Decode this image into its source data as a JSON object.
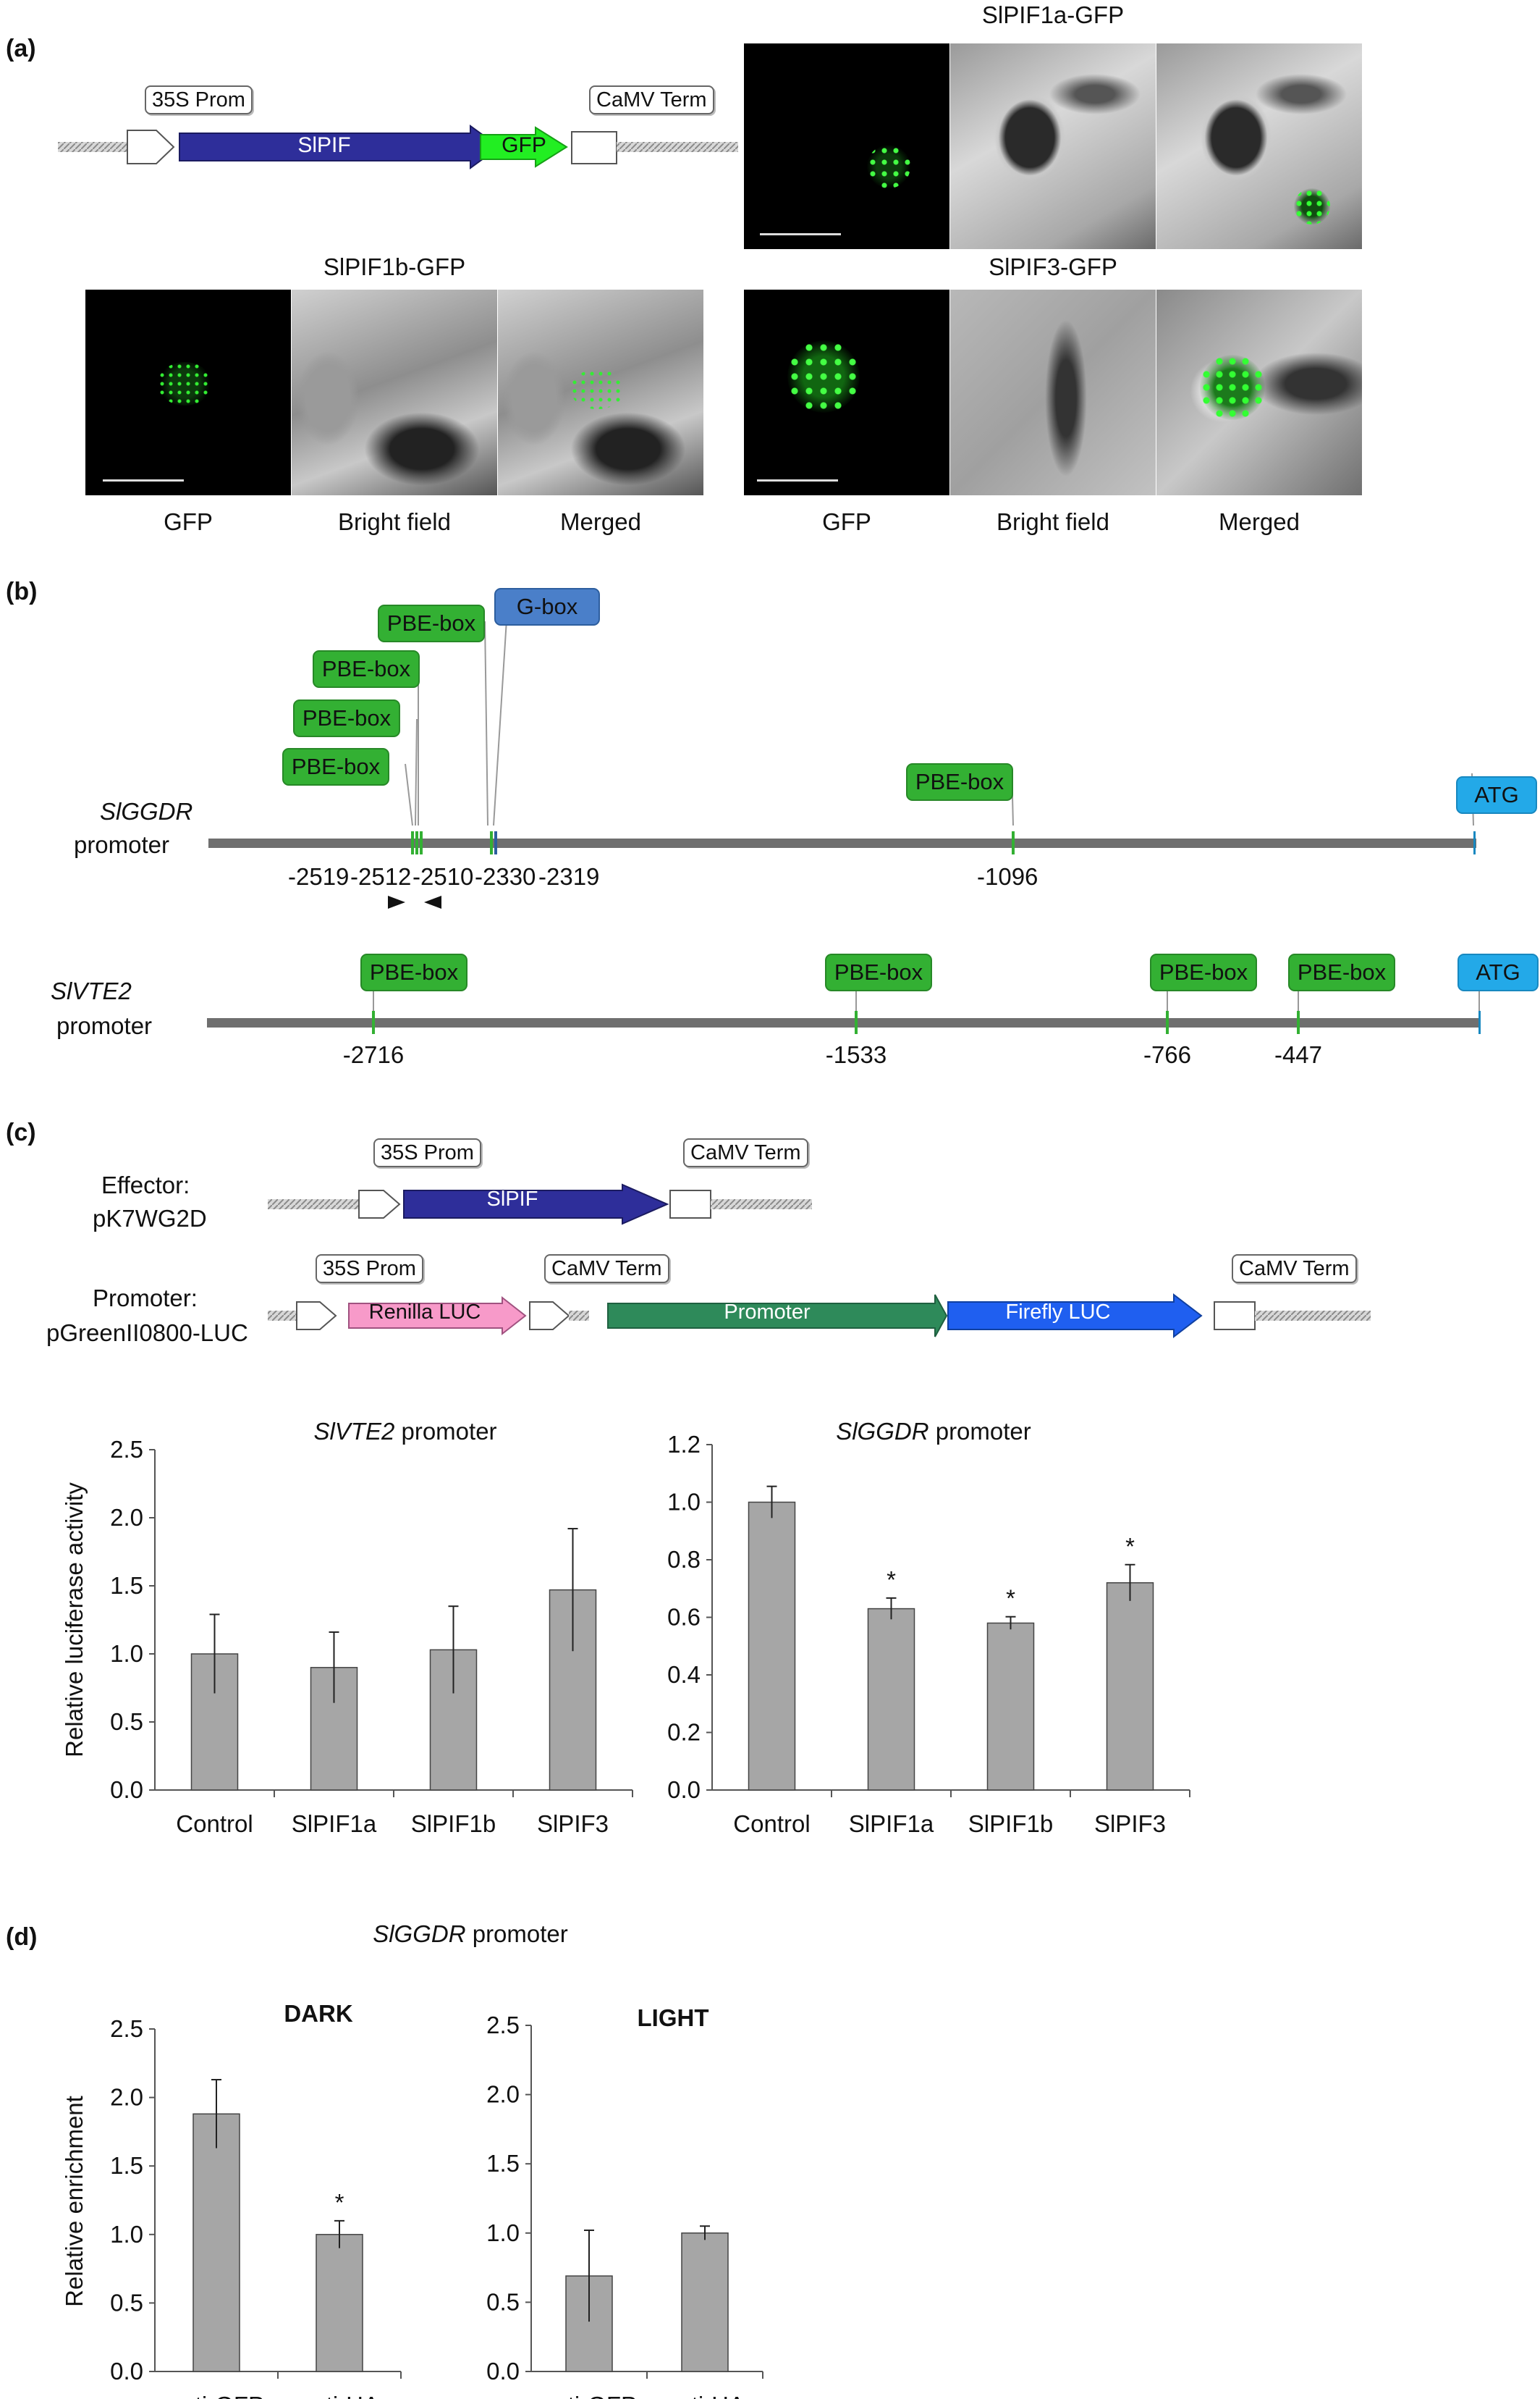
{
  "panel_a": {
    "label": "(a)",
    "construct": {
      "prom": "35S Prom",
      "gene": "SlPIF",
      "gfp": "GFP",
      "term": "CaMV Term"
    },
    "sets": [
      {
        "title": "SlPIF1a-GFP"
      },
      {
        "title": "SlPIF1b-GFP"
      },
      {
        "title": "SlPIF3-GFP"
      }
    ],
    "image_labels": {
      "gfp": "GFP",
      "bright": "Bright field",
      "merged": "Merged"
    }
  },
  "panel_b": {
    "label": "(b)",
    "ggdr": {
      "name": "SlGGDR",
      "suffix": "promoter",
      "boxes": [
        "PBE-box",
        "PBE-box",
        "PBE-box",
        "PBE-box",
        "G-box",
        "PBE-box",
        "ATG"
      ],
      "positions": [
        "-2519",
        "-2512",
        "-2510",
        "-2330",
        "-2319",
        "-1096"
      ]
    },
    "vte2": {
      "name": "SlVTE2",
      "suffix": "promoter",
      "boxes": [
        "PBE-box",
        "PBE-box",
        "PBE-box",
        "PBE-box",
        "ATG"
      ],
      "positions": [
        "-2716",
        "-1533",
        "-766",
        "-447"
      ]
    }
  },
  "panel_c": {
    "label": "(c)",
    "effector": {
      "line1": "Effector:",
      "line2": "pK7WG2D",
      "prom": "35S Prom",
      "gene": "SlPIF",
      "term": "CaMV Term"
    },
    "reporter": {
      "line1": "Promoter:",
      "line2": "pGreenII0800-LUC",
      "prom": "35S Prom",
      "renilla": "Renilla LUC",
      "term1": "CaMV Term",
      "promoter": "Promoter",
      "firefly": "Firefly LUC",
      "term2": "CaMV Term"
    }
  },
  "panel_d": {
    "label": "(d)",
    "title_name": "SlGGDR",
    "title_suffix": "promoter"
  },
  "chart_data": [
    {
      "type": "bar",
      "title_name": "SlVTE2",
      "title_suffix": "promoter",
      "ylabel": "Relative luciferase activity",
      "ylim": [
        0,
        2.5
      ],
      "yticks": [
        "0.0",
        "0.5",
        "1.0",
        "1.5",
        "2.0",
        "2.5"
      ],
      "categories": [
        "Control",
        "SlPIF1a",
        "SlPIF1b",
        "SlPIF3"
      ],
      "values": [
        1.0,
        0.9,
        1.03,
        1.47
      ],
      "errors": [
        0.29,
        0.26,
        0.32,
        0.45
      ],
      "significance": [
        "",
        "",
        "",
        ""
      ]
    },
    {
      "type": "bar",
      "title_name": "SlGGDR",
      "title_suffix": "promoter",
      "ylabel": "",
      "ylim": [
        0,
        1.2
      ],
      "yticks": [
        "0.0",
        "0.2",
        "0.4",
        "0.6",
        "0.8",
        "1.0",
        "1.2"
      ],
      "categories": [
        "Control",
        "SlPIF1a",
        "SlPIF1b",
        "SlPIF3"
      ],
      "values": [
        1.0,
        0.63,
        0.58,
        0.72
      ],
      "errors": [
        0.055,
        0.037,
        0.022,
        0.063
      ],
      "significance": [
        "",
        "*",
        "*",
        "*"
      ]
    },
    {
      "type": "bar",
      "title": "DARK",
      "ylabel": "Relative enrichment",
      "ylim": [
        0,
        2.5
      ],
      "yticks": [
        "0.0",
        "0.5",
        "1.0",
        "1.5",
        "2.0",
        "2.5"
      ],
      "categories": [
        "anti-GFP",
        "anti-HA"
      ],
      "values": [
        1.88,
        1.0
      ],
      "errors": [
        0.25,
        0.1
      ],
      "significance": [
        "",
        "*"
      ]
    },
    {
      "type": "bar",
      "title": "LIGHT",
      "ylabel": "",
      "ylim": [
        0,
        2.5
      ],
      "yticks": [
        "0.0",
        "0.5",
        "1.0",
        "1.5",
        "2.0",
        "2.5"
      ],
      "categories": [
        "anti-GFP",
        "anti-HA"
      ],
      "values": [
        0.69,
        1.0
      ],
      "errors": [
        0.33,
        0.05
      ],
      "significance": [
        "",
        ""
      ]
    }
  ]
}
